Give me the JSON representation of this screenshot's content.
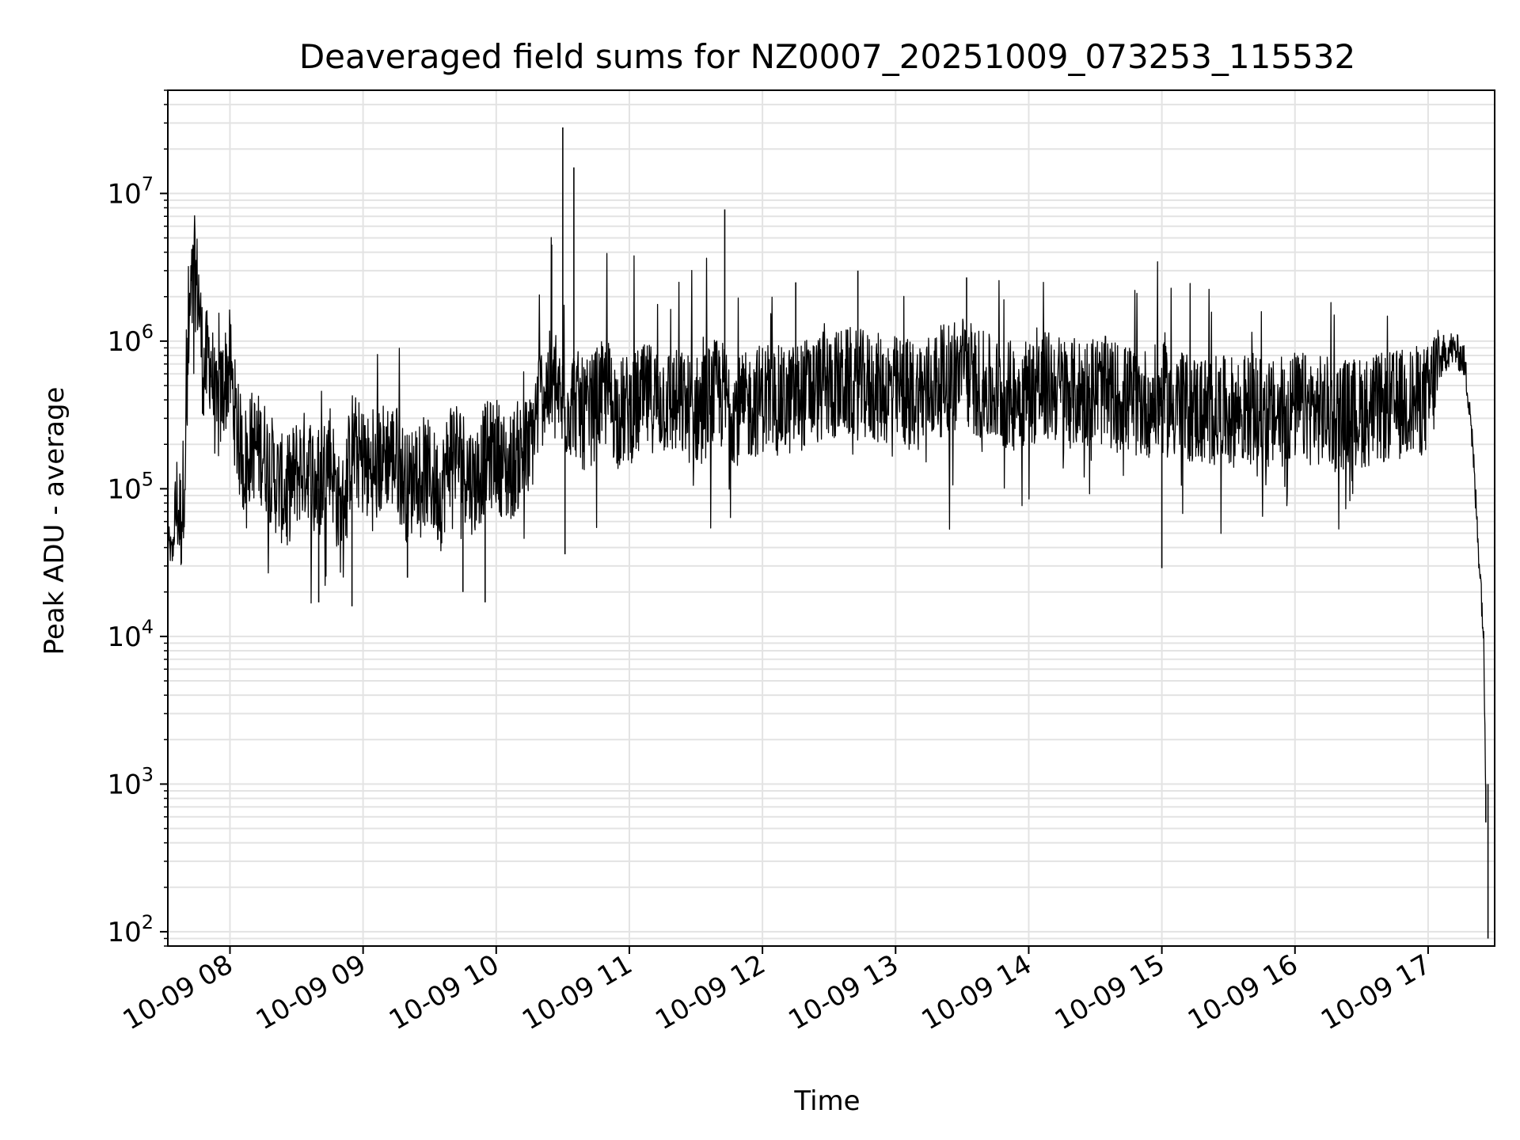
{
  "chart_data": {
    "type": "line",
    "title": "Deaveraged field sums for NZ0007_20251009_073253_115532",
    "xlabel": "Time",
    "ylabel": "Peak ADU - average",
    "y_scale": "log",
    "grid": true,
    "color": "#000000",
    "xlim": [
      "2025-10-09 07:32",
      "2025-10-09 17:30"
    ],
    "ylim": [
      80,
      50000000
    ],
    "x_ticks": [
      "2025-10-09 08:00",
      "2025-10-09 09:00",
      "2025-10-09 10:00",
      "2025-10-09 11:00",
      "2025-10-09 12:00",
      "2025-10-09 13:00",
      "2025-10-09 14:00",
      "2025-10-09 15:00",
      "2025-10-09 16:00",
      "2025-10-09 17:00"
    ],
    "x_tick_labels": [
      "10-09 08",
      "10-09 09",
      "10-09 10",
      "10-09 11",
      "10-09 12",
      "10-09 13",
      "10-09 14",
      "10-09 15",
      "10-09 16",
      "10-09 17"
    ],
    "y_ticks": [
      100,
      1000,
      10000,
      100000,
      1000000,
      10000000
    ],
    "y_tick_labels": [
      {
        "base": "10",
        "exp": "2"
      },
      {
        "base": "10",
        "exp": "3"
      },
      {
        "base": "10",
        "exp": "4"
      },
      {
        "base": "10",
        "exp": "5"
      },
      {
        "base": "10",
        "exp": "6"
      },
      {
        "base": "10",
        "exp": "7"
      }
    ],
    "series": [
      {
        "x": [
          "2025-10-09 07:32",
          "2025-10-09 07:34",
          "2025-10-09 07:36",
          "2025-10-09 07:38",
          "2025-10-09 07:40",
          "2025-10-09 07:42",
          "2025-10-09 07:44",
          "2025-10-09 07:46",
          "2025-10-09 07:48",
          "2025-10-09 07:51",
          "2025-10-09 07:54",
          "2025-10-09 07:57",
          "2025-10-09 08:00",
          "2025-10-09 08:03",
          "2025-10-09 08:06",
          "2025-10-09 08:10",
          "2025-10-09 08:15",
          "2025-10-09 08:20",
          "2025-10-09 08:25",
          "2025-10-09 08:30",
          "2025-10-09 08:35",
          "2025-10-09 08:40",
          "2025-10-09 08:45",
          "2025-10-09 08:50",
          "2025-10-09 08:55",
          "2025-10-09 09:00",
          "2025-10-09 09:05",
          "2025-10-09 09:10",
          "2025-10-09 09:15",
          "2025-10-09 09:20",
          "2025-10-09 09:25",
          "2025-10-09 09:30",
          "2025-10-09 09:35",
          "2025-10-09 09:40",
          "2025-10-09 09:45",
          "2025-10-09 09:50",
          "2025-10-09 09:55",
          "2025-10-09 10:00",
          "2025-10-09 10:05",
          "2025-10-09 10:10",
          "2025-10-09 10:15",
          "2025-10-09 10:20",
          "2025-10-09 10:25",
          "2025-10-09 10:30",
          "2025-10-09 10:35",
          "2025-10-09 10:40",
          "2025-10-09 10:45",
          "2025-10-09 10:50",
          "2025-10-09 10:55",
          "2025-10-09 11:00",
          "2025-10-09 11:10",
          "2025-10-09 11:20",
          "2025-10-09 11:30",
          "2025-10-09 11:40",
          "2025-10-09 11:50",
          "2025-10-09 12:00",
          "2025-10-09 12:10",
          "2025-10-09 12:20",
          "2025-10-09 12:30",
          "2025-10-09 12:40",
          "2025-10-09 12:50",
          "2025-10-09 13:00",
          "2025-10-09 13:10",
          "2025-10-09 13:20",
          "2025-10-09 13:30",
          "2025-10-09 13:40",
          "2025-10-09 13:50",
          "2025-10-09 14:00",
          "2025-10-09 14:10",
          "2025-10-09 14:20",
          "2025-10-09 14:30",
          "2025-10-09 14:40",
          "2025-10-09 14:50",
          "2025-10-09 15:00",
          "2025-10-09 15:10",
          "2025-10-09 15:20",
          "2025-10-09 15:30",
          "2025-10-09 15:40",
          "2025-10-09 15:50",
          "2025-10-09 16:00",
          "2025-10-09 16:10",
          "2025-10-09 16:20",
          "2025-10-09 16:30",
          "2025-10-09 16:40",
          "2025-10-09 16:50",
          "2025-10-09 17:00",
          "2025-10-09 17:05",
          "2025-10-09 17:10",
          "2025-10-09 17:13",
          "2025-10-09 17:16",
          "2025-10-09 17:19",
          "2025-10-09 17:22",
          "2025-10-09 17:24",
          "2025-10-09 17:25",
          "2025-10-09 17:26"
        ],
        "y": [
          45000,
          35000,
          80000,
          60000,
          180000,
          1500000,
          3000000,
          2000000,
          600000,
          800000,
          300000,
          500000,
          700000,
          250000,
          150000,
          200000,
          180000,
          120000,
          90000,
          130000,
          150000,
          100000,
          180000,
          60000,
          200000,
          150000,
          120000,
          180000,
          160000,
          100000,
          140000,
          120000,
          90000,
          200000,
          150000,
          110000,
          160000,
          180000,
          130000,
          170000,
          180000,
          450000,
          500000,
          350000,
          400000,
          300000,
          380000,
          450000,
          320000,
          350000,
          420000,
          380000,
          340000,
          450000,
          330000,
          420000,
          380000,
          450000,
          500000,
          520000,
          480000,
          460000,
          440000,
          530000,
          650000,
          480000,
          420000,
          460000,
          500000,
          440000,
          480000,
          420000,
          380000,
          400000,
          360000,
          340000,
          330000,
          350000,
          310000,
          360000,
          340000,
          320000,
          330000,
          350000,
          380000,
          400000,
          700000,
          900000,
          850000,
          750000,
          350000,
          60000,
          20000,
          10000,
          1000
        ],
        "spikes": [
          {
            "x": "2025-10-09 07:45",
            "y": 3300000
          },
          {
            "x": "2025-10-09 08:40",
            "y": 17000
          },
          {
            "x": "2025-10-09 08:55",
            "y": 16000
          },
          {
            "x": "2025-10-09 09:20",
            "y": 25000
          },
          {
            "x": "2025-10-09 09:45",
            "y": 20000
          },
          {
            "x": "2025-10-09 09:55",
            "y": 17000
          },
          {
            "x": "2025-10-09 10:25",
            "y": 4500000
          },
          {
            "x": "2025-10-09 10:30",
            "y": 28000000
          },
          {
            "x": "2025-10-09 10:31",
            "y": 36000
          },
          {
            "x": "2025-10-09 10:35",
            "y": 15000000
          },
          {
            "x": "2025-10-09 11:43",
            "y": 7800000
          },
          {
            "x": "2025-10-09 12:15",
            "y": 2500000
          },
          {
            "x": "2025-10-09 12:43",
            "y": 3000000
          },
          {
            "x": "2025-10-09 13:32",
            "y": 2700000
          },
          {
            "x": "2025-10-09 15:00",
            "y": 29000
          },
          {
            "x": "2025-10-09 17:07",
            "y": 1100000
          },
          {
            "x": "2025-10-09 17:26",
            "y": 550
          },
          {
            "x": "2025-10-09 17:27",
            "y": 90
          }
        ]
      }
    ]
  }
}
